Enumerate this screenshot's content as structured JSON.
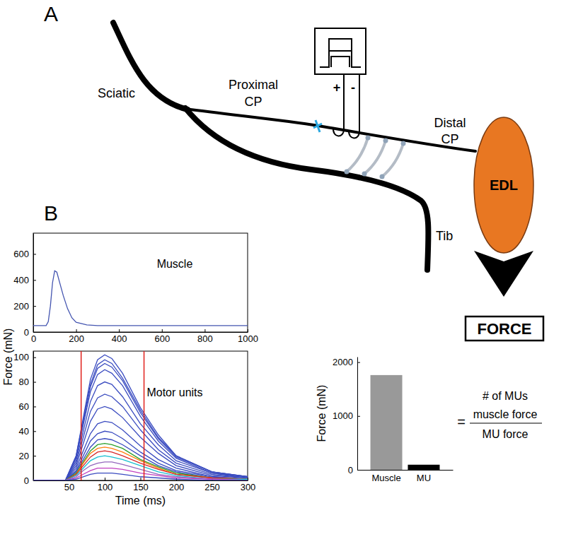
{
  "diagram": {
    "panel_labels": [
      "A",
      "B"
    ],
    "nerves": {
      "sciatic": "Sciatic",
      "proximal": [
        "Proximal",
        "CP"
      ],
      "distal": [
        "Distal",
        "CP"
      ],
      "tib": "Tib"
    },
    "muscle": "EDL",
    "stimulator_polarity": [
      "+",
      "-"
    ],
    "output": "FORCE"
  },
  "chart_data": [
    {
      "type": "line",
      "title": "Muscle",
      "ylabel": "Force (mN)",
      "x": [
        0,
        50,
        60,
        70,
        80,
        90,
        100,
        110,
        120,
        140,
        160,
        180,
        200,
        250,
        300,
        500,
        1000
      ],
      "series": [
        {
          "color": "#4455b0",
          "values": [
            50,
            50,
            50,
            80,
            200,
            380,
            470,
            460,
            400,
            280,
            180,
            110,
            75,
            55,
            50,
            50,
            50
          ]
        }
      ],
      "xlim": [
        0,
        1000
      ],
      "ylim": [
        0,
        760
      ],
      "xticks": [
        0,
        200,
        400,
        600,
        800,
        1000
      ],
      "yticks": [
        0,
        200,
        400,
        600
      ]
    },
    {
      "type": "line",
      "title": "Motor units",
      "xlabel": "Time (ms)",
      "x": [
        0,
        25,
        45,
        60,
        70,
        80,
        90,
        100,
        110,
        125,
        150,
        175,
        200,
        250,
        300
      ],
      "series": [
        {
          "color": "#3b4cc0",
          "values": [
            0,
            0,
            0,
            20,
            51,
            82,
            98,
            102,
            99,
            87,
            59,
            37,
            20,
            7,
            3
          ]
        },
        {
          "color": "#3b4cc0",
          "values": [
            0,
            0,
            0,
            20,
            49,
            78,
            94,
            98,
            95,
            83,
            57,
            35,
            20,
            7,
            3
          ]
        },
        {
          "color": "#3b4cc0",
          "values": [
            0,
            0,
            0,
            19,
            48,
            76,
            91,
            95,
            92,
            81,
            55,
            34,
            19,
            7,
            3
          ]
        },
        {
          "color": "#3b4cc0",
          "values": [
            0,
            0,
            0,
            18,
            45,
            72,
            86,
            90,
            87,
            77,
            52,
            32,
            18,
            6,
            3
          ]
        },
        {
          "color": "#3b4cc0",
          "values": [
            0,
            0,
            0,
            16,
            40,
            64,
            77,
            80,
            78,
            68,
            46,
            29,
            16,
            6,
            2
          ]
        },
        {
          "color": "#3b4cc0",
          "values": [
            0,
            0,
            0,
            14,
            35,
            56,
            67,
            70,
            68,
            60,
            41,
            25,
            14,
            5,
            2
          ]
        },
        {
          "color": "#3b4cc0",
          "values": [
            0,
            0,
            0,
            12,
            30,
            48,
            58,
            60,
            58,
            51,
            35,
            22,
            12,
            4,
            2
          ]
        },
        {
          "color": "#3b4cc0",
          "values": [
            0,
            0,
            0,
            10,
            24,
            38,
            46,
            48,
            47,
            41,
            28,
            17,
            10,
            3,
            1
          ]
        },
        {
          "color": "#3b4cc0",
          "values": [
            0,
            0,
            0,
            8,
            20,
            32,
            38,
            40,
            39,
            34,
            23,
            14,
            8,
            3,
            1
          ]
        },
        {
          "color": "#3b4cc0",
          "values": [
            0,
            0,
            0,
            7,
            17,
            27,
            33,
            34,
            33,
            29,
            20,
            12,
            7,
            2,
            1
          ]
        },
        {
          "color": "#2ca02c",
          "values": [
            0,
            0,
            0,
            6,
            15,
            24,
            29,
            30,
            29,
            26,
            17,
            11,
            6,
            2,
            1
          ]
        },
        {
          "color": "#ff7f0e",
          "values": [
            0,
            0,
            0,
            5,
            14,
            22,
            26,
            27,
            26,
            23,
            16,
            10,
            5,
            2,
            1
          ]
        },
        {
          "color": "#d62728",
          "values": [
            0,
            0,
            0,
            5,
            12,
            19,
            23,
            24,
            23,
            20,
            14,
            9,
            5,
            2,
            1
          ]
        },
        {
          "color": "#17becf",
          "values": [
            0,
            0,
            0,
            4,
            10,
            16,
            19,
            20,
            19,
            17,
            12,
            7,
            4,
            1,
            1
          ]
        },
        {
          "color": "#9467bd",
          "values": [
            0,
            0,
            0,
            3,
            8,
            12,
            14,
            15,
            15,
            13,
            9,
            5,
            3,
            1,
            0
          ]
        },
        {
          "color": "#c040c0",
          "values": [
            0,
            0,
            0,
            2,
            5,
            8,
            10,
            10,
            10,
            9,
            6,
            4,
            2,
            1,
            0
          ]
        },
        {
          "color": "#3b4cc0",
          "values": [
            0,
            0,
            0,
            1,
            3,
            5,
            6,
            6,
            6,
            5,
            3,
            2,
            1,
            0,
            0
          ]
        }
      ],
      "vlines": [
        67,
        155
      ],
      "xlim": [
        0,
        300
      ],
      "ylim": [
        0,
        105
      ],
      "xticks": [
        50,
        100,
        150,
        200,
        250,
        300
      ],
      "yticks": [
        0,
        20,
        40,
        60,
        80,
        100
      ]
    },
    {
      "type": "bar",
      "ylabel": "Force (mN)",
      "categories": [
        "Muscle",
        "MU"
      ],
      "values": [
        1760,
        95
      ],
      "colors": [
        "#999999",
        "#000000"
      ],
      "ylim": [
        0,
        2100
      ],
      "yticks": [
        0,
        1000,
        2000
      ],
      "annotation": {
        "lhs": "# of MUs",
        "equals": "=",
        "numerator": "muscle force",
        "denominator": "MU force"
      }
    }
  ]
}
